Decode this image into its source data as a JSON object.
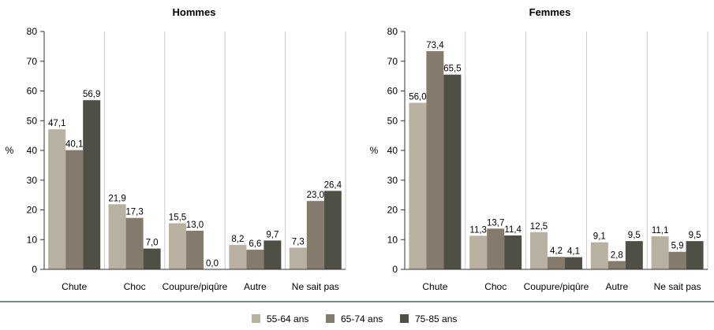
{
  "colors": {
    "s0": "#b8b0a0",
    "s1": "#857b6c",
    "s2": "#4f4f45",
    "separator": "#6f8f86",
    "axis": "#333333",
    "grid": "#c9c9c9"
  },
  "chart_data": [
    {
      "type": "bar",
      "title": "Hommes",
      "ylabel": "%",
      "ylim": [
        0,
        80
      ],
      "yticks": [
        0,
        10,
        20,
        30,
        40,
        50,
        60,
        70,
        80
      ],
      "categories": [
        "Chute",
        "Choc",
        "Coupure/piqûre",
        "Autre",
        "Ne sait pas"
      ],
      "series": [
        {
          "name": "55-64 ans",
          "values": [
            47.1,
            21.9,
            15.5,
            8.2,
            7.3
          ],
          "labels": [
            "47,1",
            "21,9",
            "15,5",
            "8,2",
            "7,3"
          ]
        },
        {
          "name": "65-74 ans",
          "values": [
            40.1,
            17.3,
            13.0,
            6.6,
            23.0
          ],
          "labels": [
            "40,1",
            "17,3",
            "13,0",
            "6,6",
            "23,0"
          ]
        },
        {
          "name": "75-85 ans",
          "values": [
            56.9,
            7.0,
            0.0,
            9.7,
            26.4
          ],
          "labels": [
            "56,9",
            "7,0",
            "0,0",
            "9,7",
            "26,4"
          ]
        }
      ],
      "legend": "bottom",
      "grid": "vertical-category-dividers"
    },
    {
      "type": "bar",
      "title": "Femmes",
      "ylabel": "%",
      "ylim": [
        0,
        80
      ],
      "yticks": [
        0,
        10,
        20,
        30,
        40,
        50,
        60,
        70,
        80
      ],
      "categories": [
        "Chute",
        "Choc",
        "Coupure/piqûre",
        "Autre",
        "Ne sait pas"
      ],
      "series": [
        {
          "name": "55-64 ans",
          "values": [
            56.0,
            11.3,
            12.5,
            9.1,
            11.1
          ],
          "labels": [
            "56,0",
            "11,3",
            "12,5",
            "9,1",
            "11,1"
          ]
        },
        {
          "name": "65-74 ans",
          "values": [
            73.4,
            13.7,
            4.2,
            2.8,
            5.9
          ],
          "labels": [
            "73,4",
            "13,7",
            "4,2",
            "2,8",
            "5,9"
          ]
        },
        {
          "name": "75-85 ans",
          "values": [
            65.5,
            11.4,
            4.1,
            9.5,
            9.5
          ],
          "labels": [
            "65,5",
            "11,4",
            "4,1",
            "9,5",
            "9,5"
          ]
        }
      ],
      "legend": "bottom",
      "grid": "vertical-category-dividers"
    }
  ],
  "legend": {
    "items": [
      {
        "label": "55-64 ans",
        "color": "#b8b0a0"
      },
      {
        "label": "65-74 ans",
        "color": "#857b6c"
      },
      {
        "label": "75-85 ans",
        "color": "#4f4f45"
      }
    ]
  }
}
